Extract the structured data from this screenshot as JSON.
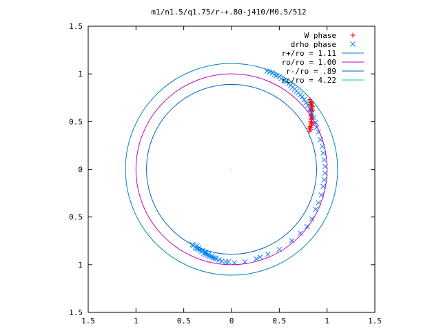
{
  "chart_data": {
    "type": "scatter",
    "title": "m1/n1.5/q1.75/r-+.80-j410/M0.5/512",
    "xlim": [
      -1.5,
      1.5
    ],
    "ylim": [
      -1.5,
      1.5
    ],
    "xticks": [
      {
        "value": -1.5,
        "label": "1.5"
      },
      {
        "value": -1.0,
        "label": "1"
      },
      {
        "value": -0.5,
        "label": "0.5"
      },
      {
        "value": 0.0,
        "label": "0"
      },
      {
        "value": 0.5,
        "label": "0.5"
      },
      {
        "value": 1.0,
        "label": "1"
      },
      {
        "value": 1.5,
        "label": "1.5"
      }
    ],
    "yticks": [
      {
        "value": 1.5,
        "label": "1.5"
      },
      {
        "value": 1.0,
        "label": "1"
      },
      {
        "value": 0.5,
        "label": "0.5"
      },
      {
        "value": 0.0,
        "label": "0"
      },
      {
        "value": -0.5,
        "label": "0.5"
      },
      {
        "value": -1.0,
        "label": "1"
      },
      {
        "value": -1.5,
        "label": "1.5"
      }
    ],
    "grid": false,
    "legend_position": "top-right",
    "legend": [
      {
        "label": "W phase",
        "kind": "marker",
        "marker": "plus",
        "color": "#ff0000"
      },
      {
        "label": "drho phase",
        "kind": "marker",
        "marker": "cross",
        "color": "#0080ff"
      },
      {
        "label": "r+/ro = 1.11",
        "kind": "line",
        "color": "#0080c0"
      },
      {
        "label": "ro/ro = 1.00",
        "kind": "line",
        "color": "#c000c0"
      },
      {
        "label": "r-/ro = .89",
        "kind": "line",
        "color": "#0060c0"
      },
      {
        "label": "rc/ro = 4.22",
        "kind": "line",
        "color": "#00c0c0"
      }
    ],
    "circles": [
      {
        "name": "r+/ro",
        "r": 1.11,
        "color": "#0080c0"
      },
      {
        "name": "ro/ro",
        "r": 1.0,
        "color": "#c000c0"
      },
      {
        "name": "r-/ro",
        "r": 0.89,
        "color": "#0060c0"
      },
      {
        "name": "rc/ro",
        "r": 4.22,
        "color": "#00c0c0"
      }
    ],
    "series": [
      {
        "name": "W phase",
        "marker": "plus",
        "color": "#ff0000",
        "points": [
          [
            0.82,
            0.4
          ],
          [
            0.83,
            0.42
          ],
          [
            0.83,
            0.44
          ],
          [
            0.82,
            0.45
          ],
          [
            0.84,
            0.46
          ],
          [
            0.83,
            0.48
          ],
          [
            0.84,
            0.49
          ],
          [
            0.83,
            0.5
          ],
          [
            0.84,
            0.52
          ],
          [
            0.83,
            0.53
          ],
          [
            0.84,
            0.54
          ],
          [
            0.83,
            0.56
          ],
          [
            0.84,
            0.57
          ],
          [
            0.83,
            0.58
          ],
          [
            0.84,
            0.6
          ],
          [
            0.83,
            0.61
          ],
          [
            0.84,
            0.62
          ],
          [
            0.83,
            0.63
          ],
          [
            0.84,
            0.64
          ],
          [
            0.83,
            0.66
          ],
          [
            0.84,
            0.67
          ],
          [
            0.83,
            0.68
          ],
          [
            0.84,
            0.69
          ],
          [
            0.83,
            0.7
          ],
          [
            0.82,
            0.7
          ],
          [
            0.84,
            0.71
          ],
          [
            0.82,
            0.73
          ],
          [
            0.85,
            0.48
          ],
          [
            0.85,
            0.55
          ],
          [
            0.85,
            0.62
          ],
          [
            0.81,
            0.43
          ],
          [
            0.85,
            0.66
          ]
        ]
      },
      {
        "name": "drho phase",
        "marker": "cross",
        "color": "#0080ff",
        "points": [
          [
            0.37,
            1.03
          ],
          [
            0.4,
            1.02
          ],
          [
            0.43,
            1.01
          ],
          [
            0.45,
            0.99
          ],
          [
            0.47,
            0.98
          ],
          [
            0.5,
            0.97
          ],
          [
            0.52,
            0.95
          ],
          [
            0.55,
            0.93
          ],
          [
            0.57,
            0.92
          ],
          [
            0.6,
            0.9
          ],
          [
            0.62,
            0.88
          ],
          [
            0.64,
            0.86
          ],
          [
            0.66,
            0.84
          ],
          [
            0.68,
            0.82
          ],
          [
            0.7,
            0.8
          ],
          [
            0.72,
            0.78
          ],
          [
            0.74,
            0.76
          ],
          [
            0.76,
            0.73
          ],
          [
            0.78,
            0.7
          ],
          [
            0.8,
            0.67
          ],
          [
            0.82,
            0.63
          ],
          [
            0.84,
            0.59
          ],
          [
            0.86,
            0.54
          ],
          [
            0.88,
            0.49
          ],
          [
            0.89,
            0.44
          ],
          [
            0.91,
            0.39
          ],
          [
            0.93,
            0.31
          ],
          [
            0.95,
            0.24
          ],
          [
            0.96,
            0.17
          ],
          [
            0.97,
            0.1
          ],
          [
            0.98,
            0.03
          ],
          [
            0.98,
            -0.04
          ],
          [
            0.97,
            -0.11
          ],
          [
            0.96,
            -0.18
          ],
          [
            0.94,
            -0.27
          ],
          [
            0.91,
            -0.35
          ],
          [
            0.88,
            -0.42
          ],
          [
            0.84,
            -0.52
          ],
          [
            0.79,
            -0.6
          ],
          [
            0.72,
            -0.67
          ],
          [
            0.63,
            -0.75
          ],
          [
            0.5,
            -0.84
          ],
          [
            0.38,
            -0.89
          ],
          [
            0.3,
            -0.92
          ],
          [
            0.26,
            -0.94
          ],
          [
            0.14,
            -0.97
          ],
          [
            0.03,
            -0.98
          ],
          [
            -0.03,
            -0.97
          ],
          [
            -0.06,
            -0.97
          ],
          [
            -0.1,
            -0.96
          ],
          [
            -0.13,
            -0.95
          ],
          [
            -0.16,
            -0.94
          ],
          [
            -0.19,
            -0.93
          ],
          [
            -0.21,
            -0.92
          ],
          [
            -0.23,
            -0.91
          ],
          [
            -0.25,
            -0.9
          ],
          [
            -0.27,
            -0.89
          ],
          [
            -0.29,
            -0.88
          ],
          [
            -0.31,
            -0.86
          ],
          [
            -0.33,
            -0.85
          ],
          [
            -0.35,
            -0.84
          ],
          [
            -0.37,
            -0.83
          ],
          [
            -0.38,
            -0.82
          ],
          [
            -0.4,
            -0.8
          ],
          [
            -0.41,
            -0.79
          ],
          [
            -0.36,
            -0.8
          ],
          [
            -0.34,
            -0.82
          ],
          [
            -0.3,
            -0.85
          ],
          [
            -0.27,
            -0.87
          ],
          [
            -0.24,
            -0.89
          ],
          [
            -0.2,
            -0.91
          ],
          [
            -0.17,
            -0.93
          ]
        ]
      }
    ]
  }
}
